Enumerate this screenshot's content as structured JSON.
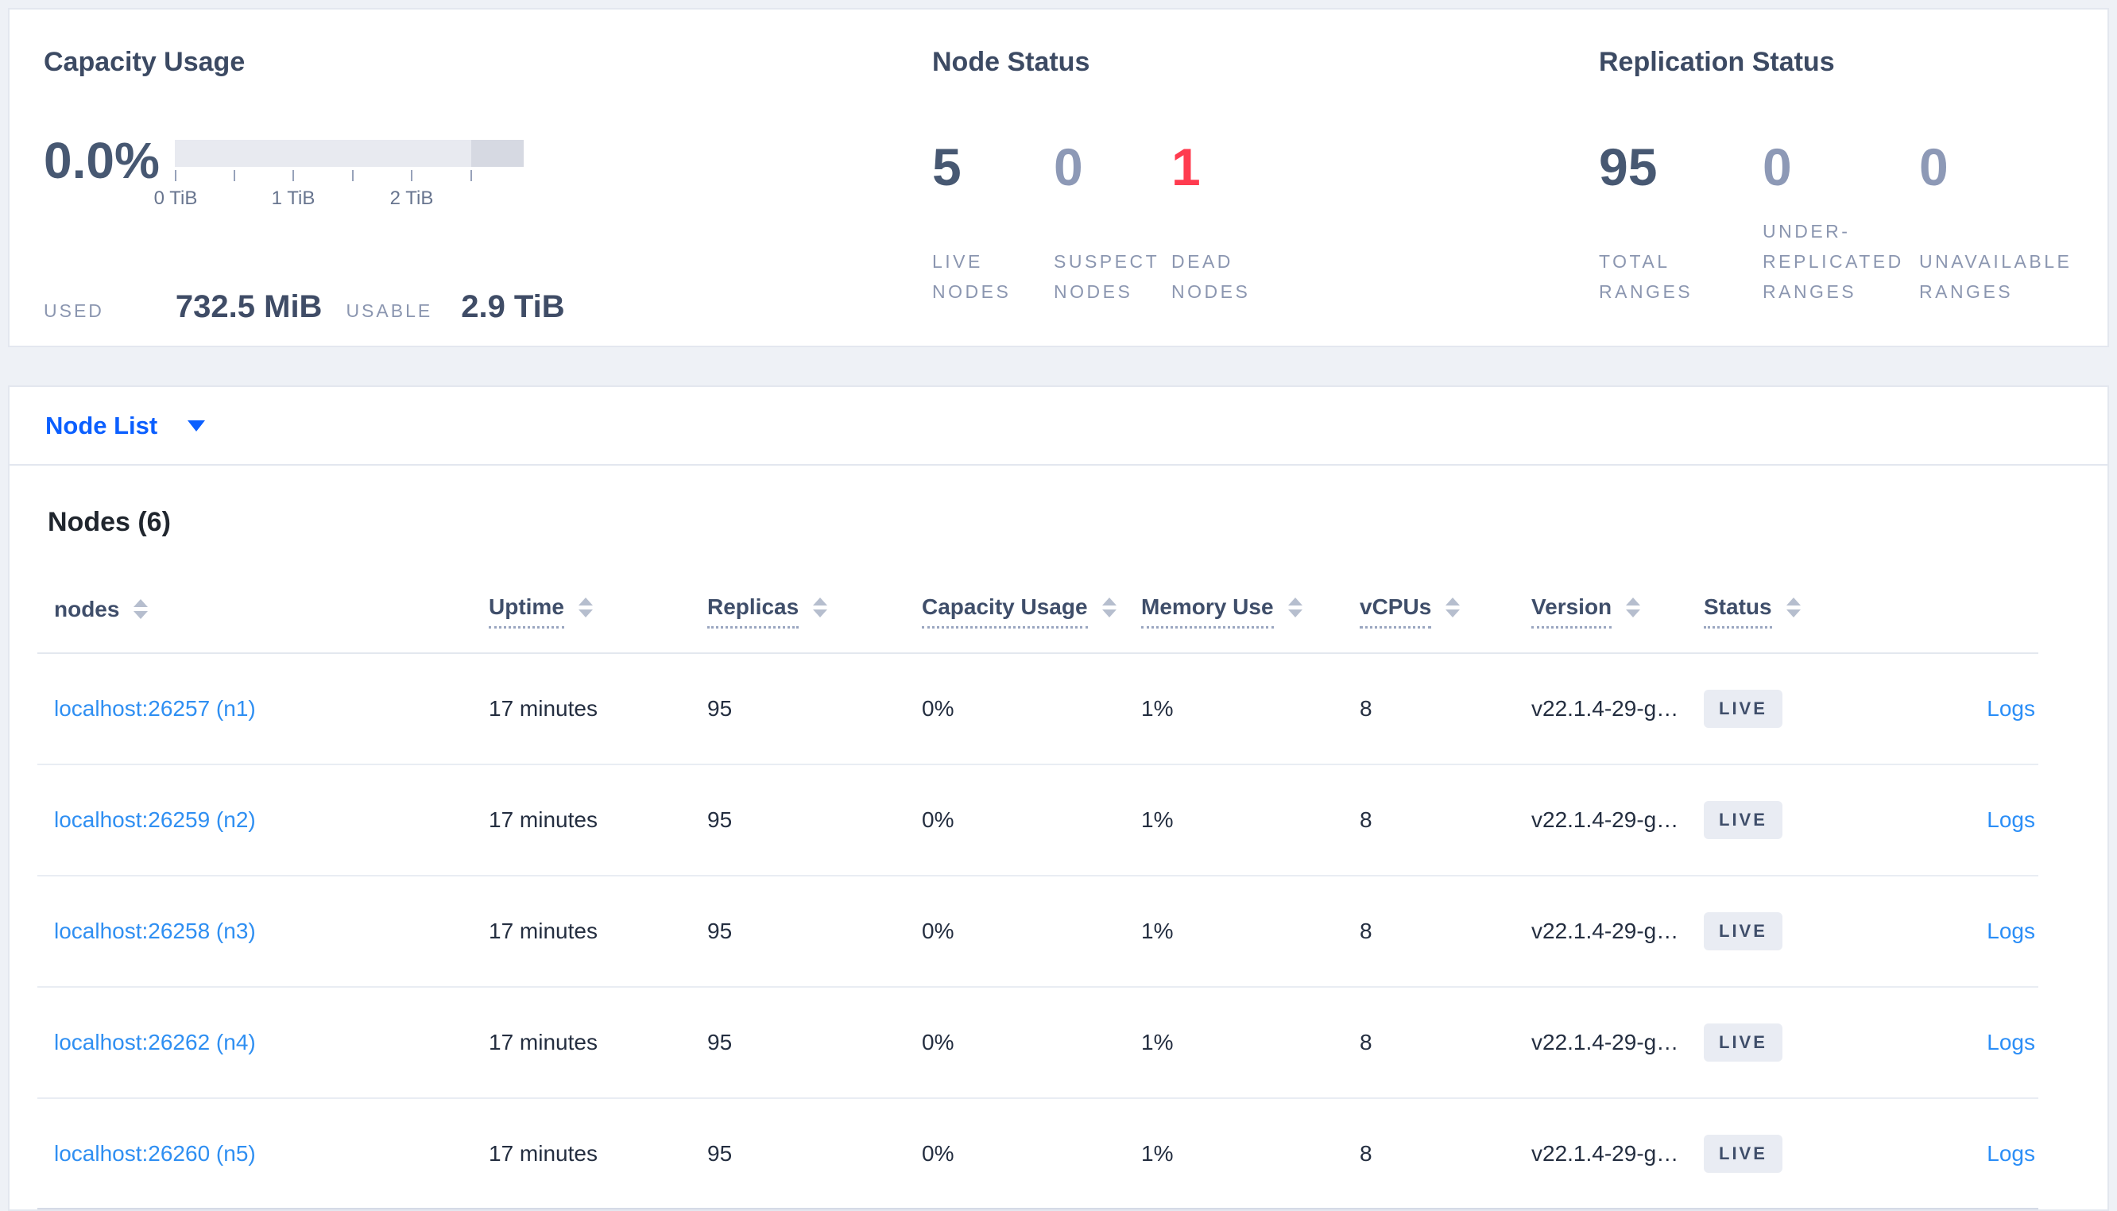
{
  "capacity": {
    "title": "Capacity Usage",
    "percent": "0.0%",
    "axis_ticks": [
      "0 TiB",
      "1 TiB",
      "2 TiB"
    ],
    "used_label": "USED",
    "used_value": "732.5 MiB",
    "usable_label": "USABLE",
    "usable_value": "2.9 TiB"
  },
  "node_status": {
    "title": "Node Status",
    "stats": [
      {
        "value": "5",
        "label": "LIVE\nNODES",
        "color": "#475872"
      },
      {
        "value": "0",
        "label": "SUSPECT\nNODES",
        "color": "#8d99b6"
      },
      {
        "value": "1",
        "label": "DEAD\nNODES",
        "color": "#ff3b4f"
      }
    ]
  },
  "replication": {
    "title": "Replication Status",
    "stats": [
      {
        "value": "95",
        "label": "TOTAL\nRANGES",
        "color": "#475872"
      },
      {
        "value": "0",
        "label": "UNDER-\nREPLICATED\nRANGES",
        "color": "#8d99b6"
      },
      {
        "value": "0",
        "label": "UNAVAILABLE\nRANGES",
        "color": "#8d99b6"
      }
    ]
  },
  "node_list": {
    "label": "Node List"
  },
  "nodes_table": {
    "heading": "Nodes (6)",
    "columns": [
      {
        "label": "nodes",
        "underlined": false
      },
      {
        "label": "Uptime",
        "underlined": true
      },
      {
        "label": "Replicas",
        "underlined": true
      },
      {
        "label": "Capacity Usage",
        "underlined": true
      },
      {
        "label": "Memory Use",
        "underlined": true
      },
      {
        "label": "vCPUs",
        "underlined": true
      },
      {
        "label": "Version",
        "underlined": true
      },
      {
        "label": "Status",
        "underlined": true
      }
    ],
    "rows": [
      {
        "node": "localhost:26257 (n1)",
        "uptime": "17 minutes",
        "replicas": "95",
        "capacity_usage": "0%",
        "memory_use": "1%",
        "vcpus": "8",
        "version": "v22.1.4-29-g…",
        "status": "LIVE",
        "logs": "Logs"
      },
      {
        "node": "localhost:26259 (n2)",
        "uptime": "17 minutes",
        "replicas": "95",
        "capacity_usage": "0%",
        "memory_use": "1%",
        "vcpus": "8",
        "version": "v22.1.4-29-g…",
        "status": "LIVE",
        "logs": "Logs"
      },
      {
        "node": "localhost:26258 (n3)",
        "uptime": "17 minutes",
        "replicas": "95",
        "capacity_usage": "0%",
        "memory_use": "1%",
        "vcpus": "8",
        "version": "v22.1.4-29-g…",
        "status": "LIVE",
        "logs": "Logs"
      },
      {
        "node": "localhost:26262 (n4)",
        "uptime": "17 minutes",
        "replicas": "95",
        "capacity_usage": "0%",
        "memory_use": "1%",
        "vcpus": "8",
        "version": "v22.1.4-29-g…",
        "status": "LIVE",
        "logs": "Logs"
      },
      {
        "node": "localhost:26260 (n5)",
        "uptime": "17 minutes",
        "replicas": "95",
        "capacity_usage": "0%",
        "memory_use": "1%",
        "vcpus": "8",
        "version": "v22.1.4-29-g…",
        "status": "LIVE",
        "logs": "Logs"
      }
    ]
  }
}
